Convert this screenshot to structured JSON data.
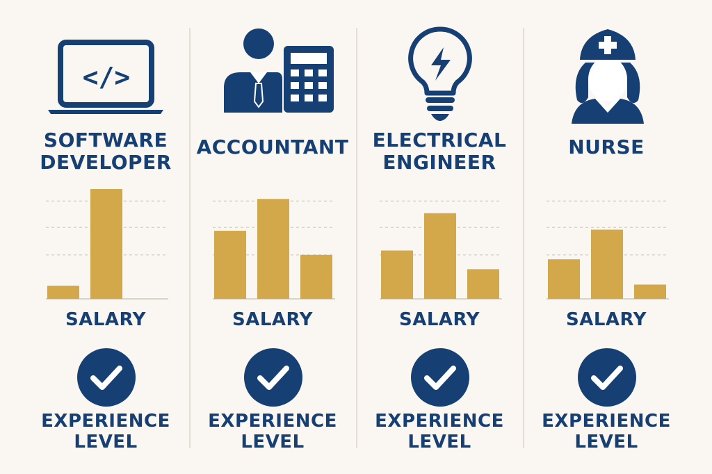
{
  "colors": {
    "navy": "#163f73",
    "gold": "#d3a84b",
    "grid": "#d9d3c8",
    "background": "#faf7f2"
  },
  "columns": [
    {
      "title": "SOFTWARE\nDEVELOPER",
      "icon": "laptop-code-icon",
      "salary_label": "SALARY",
      "experience_label": "EXPERIENCE\nLEVEL",
      "check_icon": "checkmark-circle-icon"
    },
    {
      "title": "ACCOUNTANT",
      "icon": "accountant-calculator-icon",
      "salary_label": "SALARY",
      "experience_label": "EXPERIENCE\nLEVEL",
      "check_icon": "checkmark-circle-icon"
    },
    {
      "title": "ELECTRICAL\nENGINEER",
      "icon": "lightbulb-bolt-icon",
      "salary_label": "SALARY",
      "experience_label": "EXPERIENCE\nLEVEL",
      "check_icon": "checkmark-circle-icon"
    },
    {
      "title": "NURSE",
      "icon": "nurse-icon",
      "salary_label": "SALARY",
      "experience_label": "EXPERIENCE\nLEVEL",
      "check_icon": "checkmark-circle-icon"
    }
  ],
  "chart_data": [
    {
      "type": "bar",
      "xlabel": "SALARY",
      "ylim": [
        0,
        10
      ],
      "grid": true,
      "values": [
        1.2,
        10,
        0
      ]
    },
    {
      "type": "bar",
      "xlabel": "SALARY",
      "ylim": [
        0,
        10
      ],
      "grid": true,
      "values": [
        6.2,
        9.1,
        4
      ]
    },
    {
      "type": "bar",
      "xlabel": "SALARY",
      "ylim": [
        0,
        10
      ],
      "grid": true,
      "values": [
        4.4,
        7.8,
        2.7
      ]
    },
    {
      "type": "bar",
      "xlabel": "SALARY",
      "ylim": [
        0,
        10
      ],
      "grid": true,
      "values": [
        3.6,
        6.3,
        1.3
      ]
    }
  ]
}
